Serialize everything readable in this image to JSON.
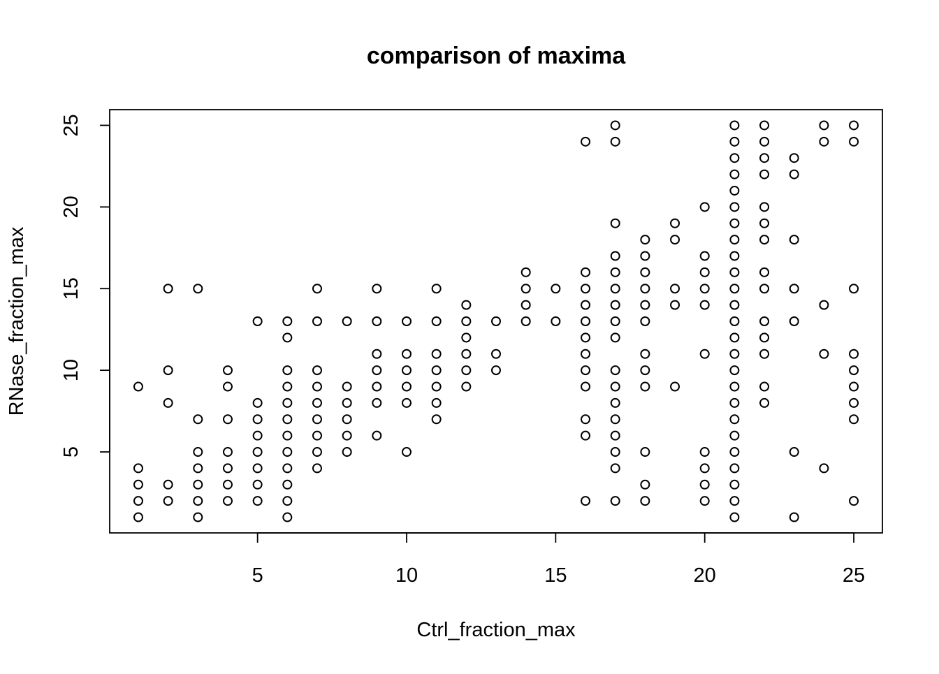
{
  "chart_data": {
    "type": "scatter",
    "title": "comparison of maxima",
    "xlabel": "Ctrl_fraction_max",
    "ylabel": "RNase_fraction_max",
    "xlim": [
      0.04,
      25.96
    ],
    "ylim": [
      0.04,
      25.96
    ],
    "x_ticks": [
      5,
      10,
      15,
      20,
      25
    ],
    "y_ticks": [
      5,
      10,
      15,
      20,
      25
    ],
    "grid": false,
    "legend": "none",
    "marker": "open-circle",
    "colors": {
      "points": "#000000",
      "axes": "#000000",
      "background": "#ffffff"
    },
    "points": [
      [
        1,
        1
      ],
      [
        1,
        2
      ],
      [
        1,
        3
      ],
      [
        1,
        4
      ],
      [
        1,
        9
      ],
      [
        2,
        2
      ],
      [
        2,
        3
      ],
      [
        2,
        8
      ],
      [
        2,
        10
      ],
      [
        2,
        15
      ],
      [
        3,
        1
      ],
      [
        3,
        2
      ],
      [
        3,
        3
      ],
      [
        3,
        4
      ],
      [
        3,
        5
      ],
      [
        3,
        7
      ],
      [
        3,
        15
      ],
      [
        4,
        2
      ],
      [
        4,
        3
      ],
      [
        4,
        4
      ],
      [
        4,
        5
      ],
      [
        4,
        7
      ],
      [
        4,
        9
      ],
      [
        4,
        10
      ],
      [
        5,
        2
      ],
      [
        5,
        3
      ],
      [
        5,
        4
      ],
      [
        5,
        5
      ],
      [
        5,
        6
      ],
      [
        5,
        7
      ],
      [
        5,
        8
      ],
      [
        5,
        13
      ],
      [
        6,
        1
      ],
      [
        6,
        2
      ],
      [
        6,
        3
      ],
      [
        6,
        4
      ],
      [
        6,
        5
      ],
      [
        6,
        6
      ],
      [
        6,
        7
      ],
      [
        6,
        8
      ],
      [
        6,
        9
      ],
      [
        6,
        10
      ],
      [
        6,
        12
      ],
      [
        6,
        13
      ],
      [
        7,
        4
      ],
      [
        7,
        5
      ],
      [
        7,
        6
      ],
      [
        7,
        7
      ],
      [
        7,
        8
      ],
      [
        7,
        9
      ],
      [
        7,
        10
      ],
      [
        7,
        13
      ],
      [
        7,
        15
      ],
      [
        8,
        5
      ],
      [
        8,
        6
      ],
      [
        8,
        7
      ],
      [
        8,
        8
      ],
      [
        8,
        9
      ],
      [
        8,
        13
      ],
      [
        9,
        6
      ],
      [
        9,
        8
      ],
      [
        9,
        9
      ],
      [
        9,
        10
      ],
      [
        9,
        11
      ],
      [
        9,
        13
      ],
      [
        9,
        15
      ],
      [
        10,
        5
      ],
      [
        10,
        8
      ],
      [
        10,
        9
      ],
      [
        10,
        10
      ],
      [
        10,
        11
      ],
      [
        10,
        13
      ],
      [
        11,
        7
      ],
      [
        11,
        8
      ],
      [
        11,
        9
      ],
      [
        11,
        10
      ],
      [
        11,
        11
      ],
      [
        11,
        13
      ],
      [
        11,
        15
      ],
      [
        12,
        9
      ],
      [
        12,
        10
      ],
      [
        12,
        11
      ],
      [
        12,
        12
      ],
      [
        12,
        13
      ],
      [
        12,
        14
      ],
      [
        13,
        10
      ],
      [
        13,
        11
      ],
      [
        13,
        13
      ],
      [
        14,
        13
      ],
      [
        14,
        14
      ],
      [
        14,
        15
      ],
      [
        14,
        16
      ],
      [
        15,
        13
      ],
      [
        15,
        15
      ],
      [
        16,
        2
      ],
      [
        16,
        6
      ],
      [
        16,
        7
      ],
      [
        16,
        9
      ],
      [
        16,
        10
      ],
      [
        16,
        11
      ],
      [
        16,
        12
      ],
      [
        16,
        13
      ],
      [
        16,
        14
      ],
      [
        16,
        15
      ],
      [
        16,
        16
      ],
      [
        16,
        24
      ],
      [
        17,
        2
      ],
      [
        17,
        4
      ],
      [
        17,
        5
      ],
      [
        17,
        6
      ],
      [
        17,
        7
      ],
      [
        17,
        8
      ],
      [
        17,
        9
      ],
      [
        17,
        10
      ],
      [
        17,
        12
      ],
      [
        17,
        13
      ],
      [
        17,
        14
      ],
      [
        17,
        15
      ],
      [
        17,
        16
      ],
      [
        17,
        17
      ],
      [
        17,
        19
      ],
      [
        17,
        24
      ],
      [
        17,
        25
      ],
      [
        18,
        2
      ],
      [
        18,
        3
      ],
      [
        18,
        5
      ],
      [
        18,
        9
      ],
      [
        18,
        10
      ],
      [
        18,
        11
      ],
      [
        18,
        13
      ],
      [
        18,
        14
      ],
      [
        18,
        15
      ],
      [
        18,
        16
      ],
      [
        18,
        17
      ],
      [
        18,
        18
      ],
      [
        19,
        9
      ],
      [
        19,
        14
      ],
      [
        19,
        15
      ],
      [
        19,
        18
      ],
      [
        19,
        19
      ],
      [
        20,
        2
      ],
      [
        20,
        3
      ],
      [
        20,
        4
      ],
      [
        20,
        5
      ],
      [
        20,
        11
      ],
      [
        20,
        14
      ],
      [
        20,
        15
      ],
      [
        20,
        16
      ],
      [
        20,
        17
      ],
      [
        20,
        20
      ],
      [
        21,
        1
      ],
      [
        21,
        2
      ],
      [
        21,
        3
      ],
      [
        21,
        4
      ],
      [
        21,
        5
      ],
      [
        21,
        6
      ],
      [
        21,
        7
      ],
      [
        21,
        8
      ],
      [
        21,
        9
      ],
      [
        21,
        10
      ],
      [
        21,
        11
      ],
      [
        21,
        12
      ],
      [
        21,
        13
      ],
      [
        21,
        14
      ],
      [
        21,
        15
      ],
      [
        21,
        16
      ],
      [
        21,
        17
      ],
      [
        21,
        18
      ],
      [
        21,
        19
      ],
      [
        21,
        20
      ],
      [
        21,
        21
      ],
      [
        21,
        22
      ],
      [
        21,
        23
      ],
      [
        21,
        24
      ],
      [
        21,
        25
      ],
      [
        22,
        8
      ],
      [
        22,
        9
      ],
      [
        22,
        11
      ],
      [
        22,
        12
      ],
      [
        22,
        13
      ],
      [
        22,
        15
      ],
      [
        22,
        16
      ],
      [
        22,
        18
      ],
      [
        22,
        19
      ],
      [
        22,
        20
      ],
      [
        22,
        22
      ],
      [
        22,
        23
      ],
      [
        22,
        24
      ],
      [
        22,
        25
      ],
      [
        23,
        1
      ],
      [
        23,
        5
      ],
      [
        23,
        13
      ],
      [
        23,
        15
      ],
      [
        23,
        18
      ],
      [
        23,
        22
      ],
      [
        23,
        23
      ],
      [
        24,
        4
      ],
      [
        24,
        11
      ],
      [
        24,
        14
      ],
      [
        24,
        24
      ],
      [
        24,
        25
      ],
      [
        25,
        2
      ],
      [
        25,
        7
      ],
      [
        25,
        8
      ],
      [
        25,
        9
      ],
      [
        25,
        10
      ],
      [
        25,
        11
      ],
      [
        25,
        15
      ],
      [
        25,
        24
      ],
      [
        25,
        25
      ]
    ]
  }
}
